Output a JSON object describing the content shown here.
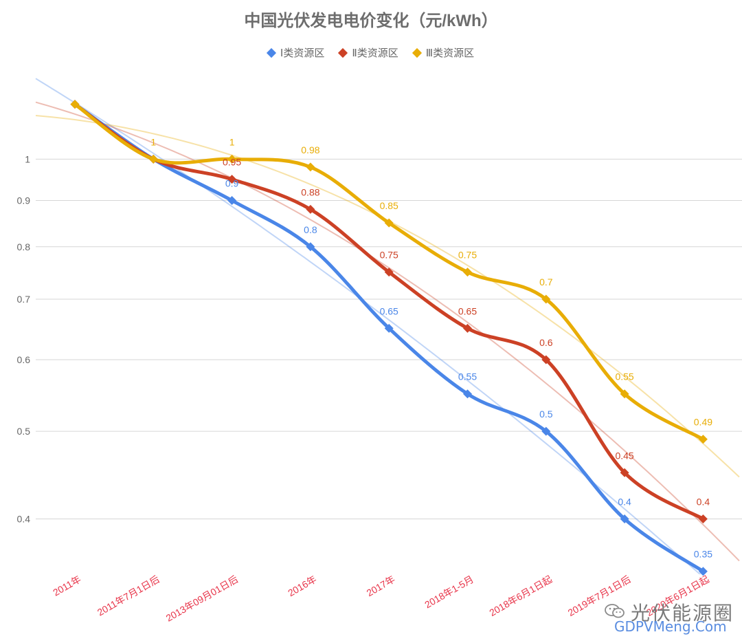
{
  "chart_data": {
    "type": "line",
    "title": "中国光伏发电电价变化（元/kWh）",
    "categories": [
      "2011年",
      "2011年7月1日后",
      "2013年09月01日后",
      "2016年",
      "2017年",
      "2018年1-5月",
      "2018年6月1日起",
      "2019年7月1日后",
      "2020年6月1日起"
    ],
    "y_ticks": [
      0.4,
      0.5,
      0.6,
      0.7,
      0.8,
      0.9,
      1
    ],
    "y_scale": "log",
    "grid": true,
    "legend_position": "top",
    "series": [
      {
        "name": "Ⅰ类资源区",
        "color": "#4a86e8",
        "values": [
          1.15,
          1,
          0.9,
          0.8,
          0.65,
          0.55,
          0.5,
          0.4,
          0.35
        ],
        "labels": [
          "",
          "",
          "0.9",
          "0.8",
          "0.65",
          "0.55",
          "0.5",
          "0.4",
          "0.35"
        ]
      },
      {
        "name": "Ⅱ类资源区",
        "color": "#cc4125",
        "values": [
          1.15,
          1,
          0.95,
          0.88,
          0.75,
          0.65,
          0.6,
          0.45,
          0.4
        ],
        "labels": [
          "",
          "",
          "0.95",
          "0.88",
          "0.75",
          "0.65",
          "0.6",
          "0.45",
          "0.4"
        ]
      },
      {
        "name": "Ⅲ类资源区",
        "color": "#e8ad06",
        "values": [
          1.15,
          1,
          1,
          0.98,
          0.85,
          0.75,
          0.7,
          0.55,
          0.49
        ],
        "labels": [
          "",
          "1",
          "1",
          "0.98",
          "0.85",
          "0.75",
          "0.7",
          "0.55",
          "0.49"
        ]
      }
    ]
  },
  "watermark": {
    "name": "光伏能源圈",
    "url": "GDPVMeng.Com"
  }
}
